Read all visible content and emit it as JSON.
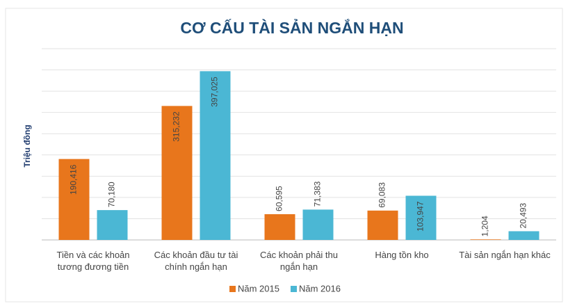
{
  "chart_data": {
    "type": "bar",
    "title": "CƠ CẤU TÀI SẢN NGẮN HẠN",
    "y_label": "Triệu đồng",
    "categories": [
      "Tiền và các khoản tương đương tiền",
      "Các khoản đầu tư tài chính ngắn hạn",
      "Các khoản phải thu ngắn hạn",
      "Hàng tồn kho",
      "Tài sản ngắn hạn khác"
    ],
    "series": [
      {
        "name": "Năm 2015",
        "color": "#e8761c",
        "values": [
          190416,
          315232,
          60595,
          69083,
          1204
        ],
        "value_labels": [
          "190,416",
          "315,232",
          "60,595",
          "69,083",
          "1,204"
        ]
      },
      {
        "name": "Năm 2016",
        "color": "#4bb7d4",
        "values": [
          70180,
          397025,
          71383,
          103947,
          20493
        ],
        "value_labels": [
          "70,180",
          "397,025",
          "71,383",
          "103,947",
          "20,493"
        ]
      }
    ],
    "ylim": [
      0,
      450000
    ],
    "yticks": [
      0,
      50000,
      100000,
      150000,
      200000,
      250000,
      300000,
      350000,
      400000,
      450000
    ],
    "grid": true,
    "legend": "bottom"
  }
}
